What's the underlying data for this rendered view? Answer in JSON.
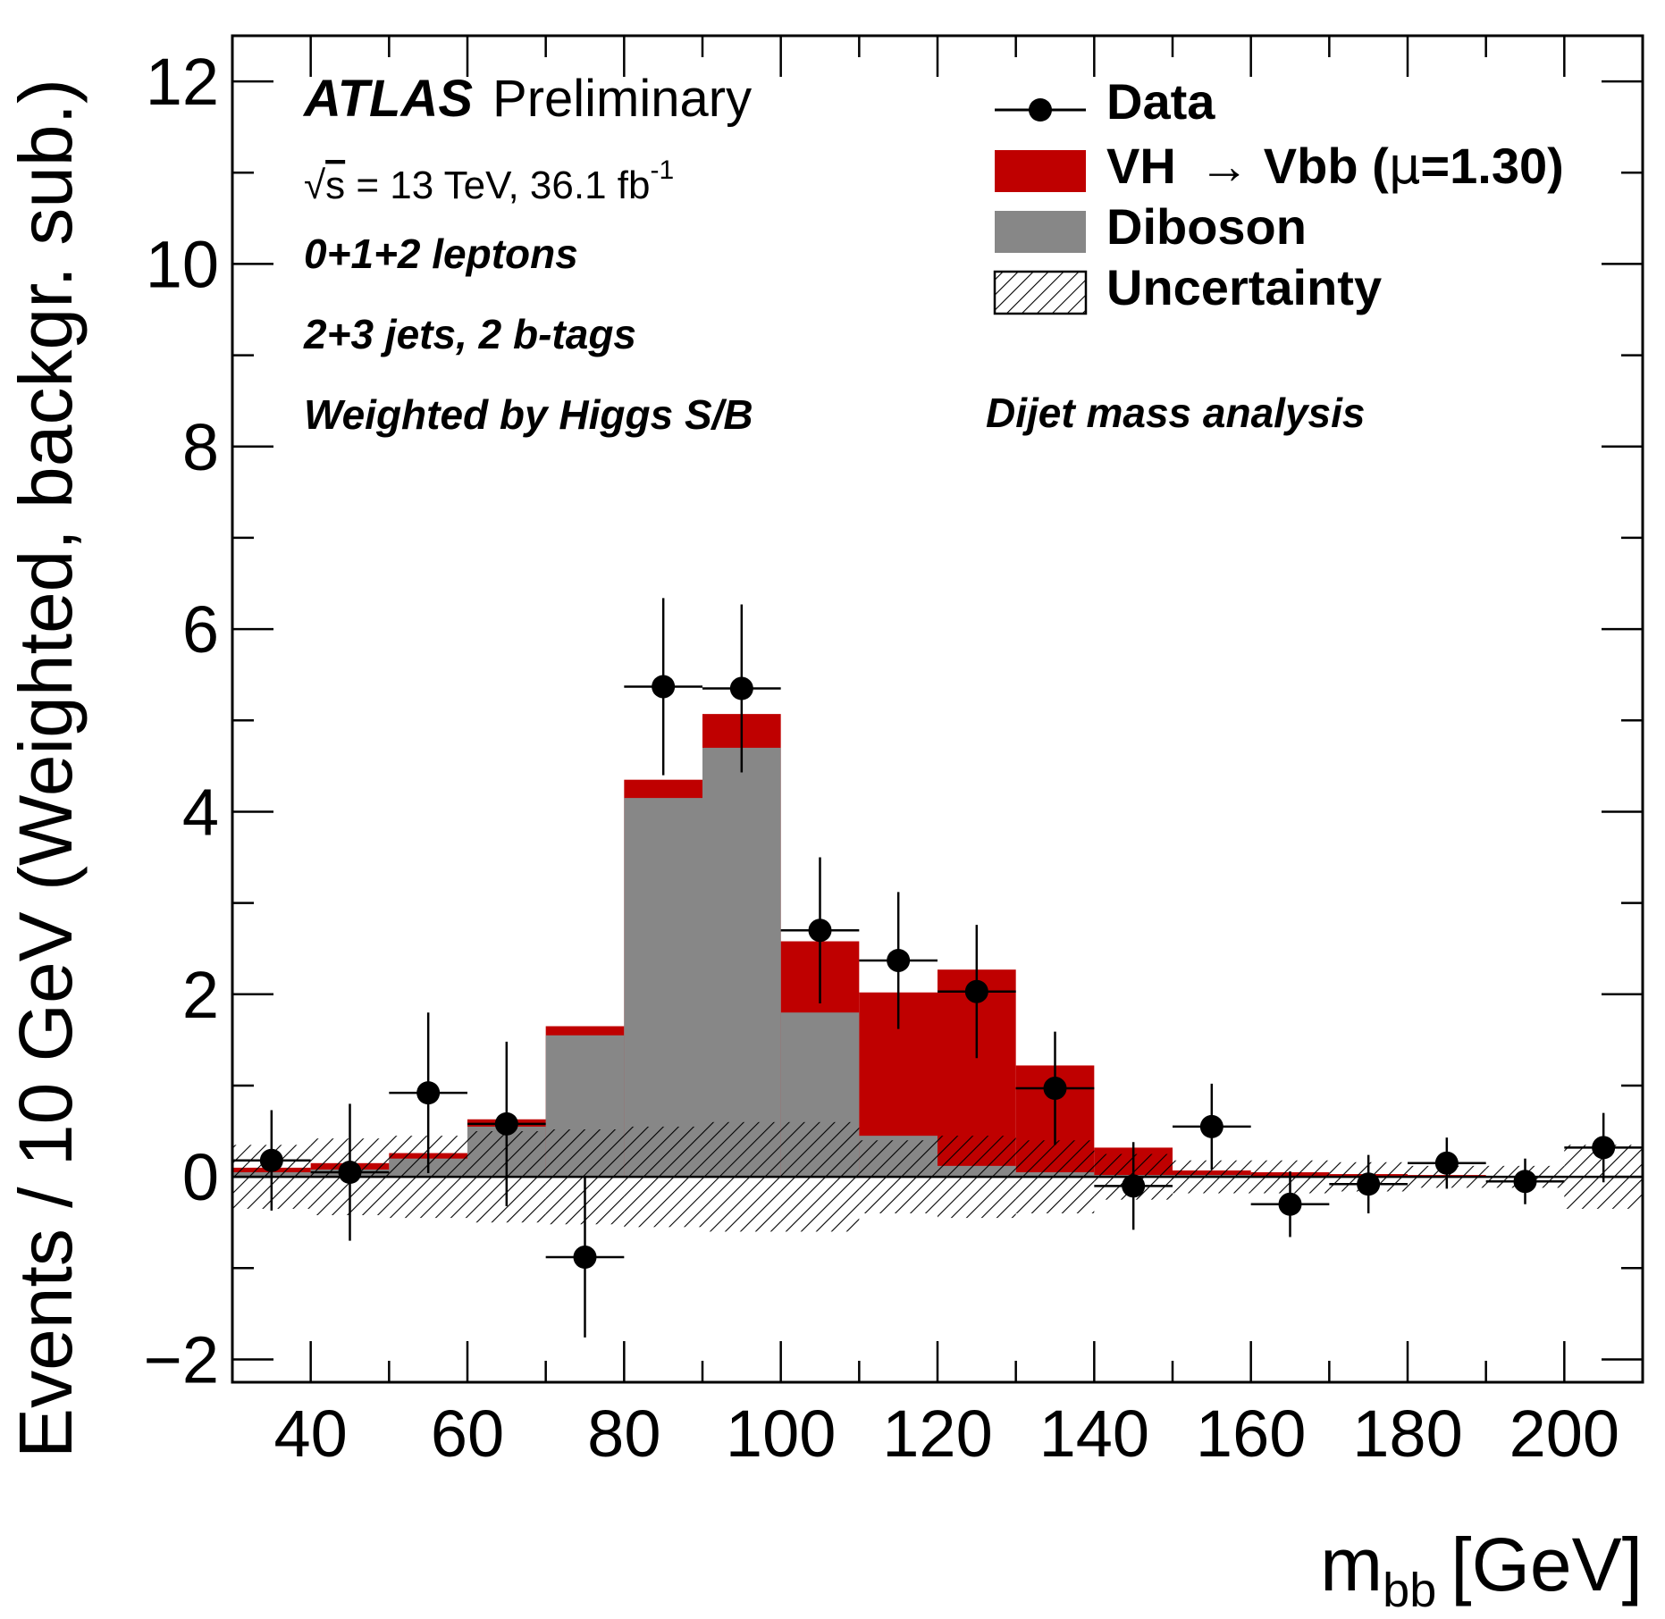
{
  "chart_data": {
    "type": "bar",
    "x_bin_edges": [
      30,
      40,
      50,
      60,
      70,
      80,
      90,
      100,
      110,
      120,
      130,
      140,
      150,
      160,
      170,
      180,
      190,
      200,
      210
    ],
    "diboson": [
      0.05,
      0.08,
      0.2,
      0.55,
      1.55,
      4.15,
      4.7,
      1.8,
      0.45,
      0.12,
      0.05,
      0.02,
      0.02,
      0.01,
      0.01,
      0.0,
      0.0,
      0.0
    ],
    "signal_total": [
      0.1,
      0.15,
      0.26,
      0.63,
      1.65,
      4.35,
      5.07,
      2.58,
      2.02,
      2.27,
      1.22,
      0.32,
      0.07,
      0.05,
      0.03,
      0.02,
      0.01,
      0.01
    ],
    "uncertainty_half_width": [
      0.35,
      0.42,
      0.45,
      0.5,
      0.52,
      0.55,
      0.6,
      0.6,
      0.4,
      0.45,
      0.4,
      0.25,
      0.18,
      0.18,
      0.16,
      0.12,
      0.12,
      0.35
    ],
    "data": {
      "x": [
        35,
        45,
        55,
        65,
        75,
        85,
        95,
        105,
        115,
        125,
        135,
        145,
        155,
        165,
        175,
        185,
        195,
        205
      ],
      "y": [
        0.18,
        0.05,
        0.92,
        0.58,
        -0.88,
        5.37,
        5.35,
        2.7,
        2.37,
        2.03,
        0.97,
        -0.1,
        0.55,
        -0.3,
        -0.08,
        0.15,
        -0.05,
        0.32
      ],
      "err": [
        0.55,
        0.75,
        0.88,
        0.9,
        0.88,
        0.97,
        0.92,
        0.8,
        0.75,
        0.73,
        0.62,
        0.48,
        0.47,
        0.36,
        0.32,
        0.28,
        0.25,
        0.38
      ]
    },
    "xlim": [
      30,
      210
    ],
    "ylim": [
      -2.25,
      12.5
    ],
    "xticks": [
      "40",
      "60",
      "80",
      "100",
      "120",
      "140",
      "160",
      "180",
      "200"
    ],
    "yticks": [
      "−2",
      "0",
      "2",
      "4",
      "6",
      "8",
      "10",
      "12"
    ],
    "xlabel_main": "m",
    "xlabel_sub": "bb",
    "xlabel_unit": "[GeV]",
    "ylabel": "Events / 10 GeV (Weighted, backgr. sub.)",
    "colors": {
      "signal": "#bf0000",
      "diboson": "#878787",
      "data": "#000000"
    },
    "legend": {
      "data": "Data",
      "signal_a": "VH",
      "signal_arrow": "→",
      "signal_b": "Vbb (",
      "signal_mu": "μ",
      "signal_c": "=1.30)",
      "diboson": "Diboson",
      "uncertainty": "Uncertainty"
    },
    "annotations": {
      "atlas": "ATLAS",
      "preliminary": "Preliminary",
      "sqrt": "√",
      "sqrt_s": "s",
      "energy": " = 13 TeV, 36.1 fb",
      "energy_sup": "-1",
      "leptons": "0+1+2 leptons",
      "jets": "2+3 jets, 2 b-tags",
      "weighted": "Weighted by Higgs S/B",
      "analysis": "Dijet mass analysis"
    },
    "grid": false,
    "legend_position": "top-right"
  }
}
